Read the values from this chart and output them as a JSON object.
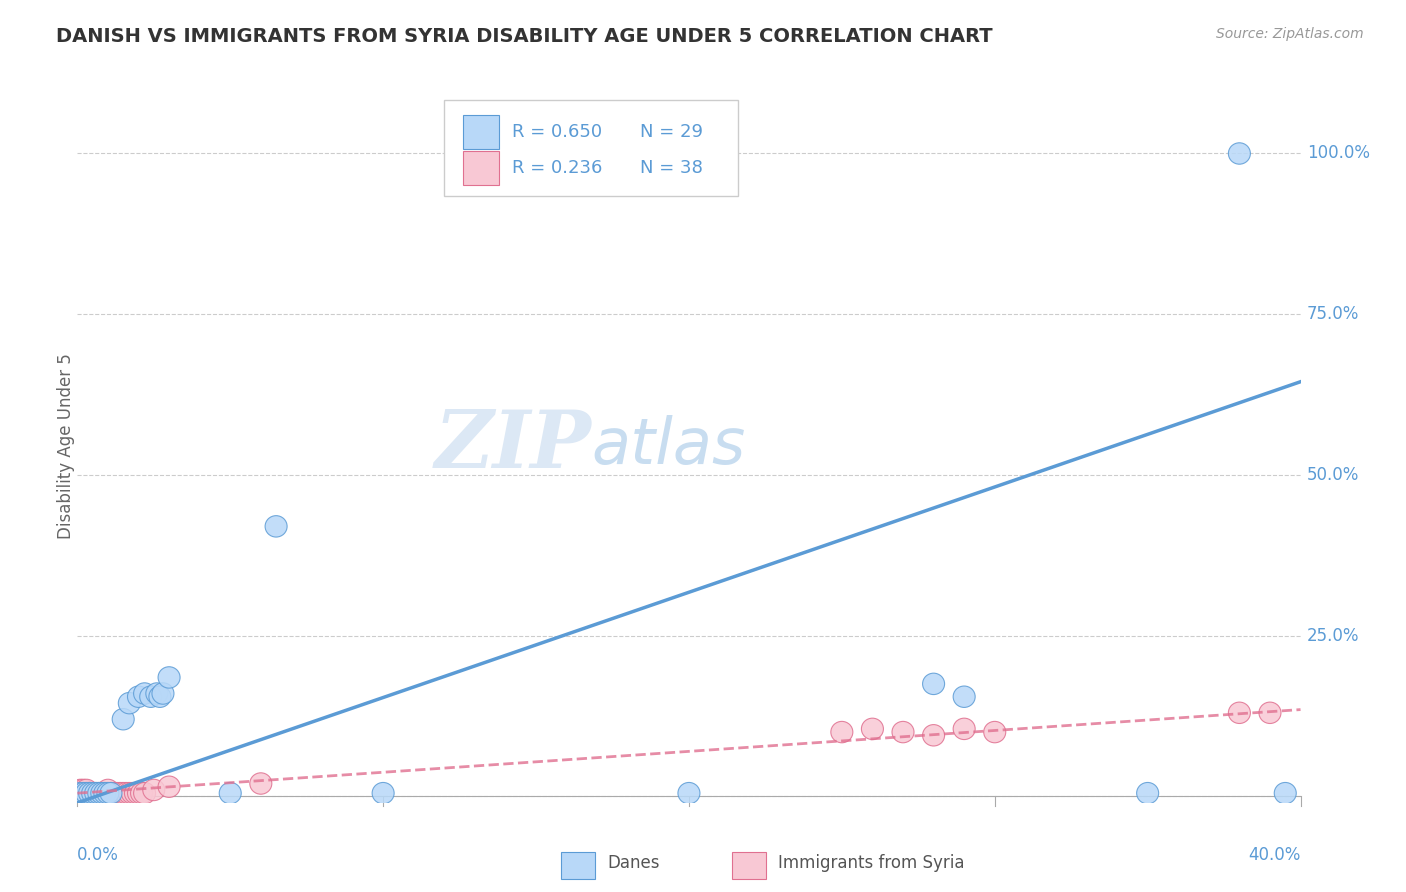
{
  "title": "DANISH VS IMMIGRANTS FROM SYRIA DISABILITY AGE UNDER 5 CORRELATION CHART",
  "source": "Source: ZipAtlas.com",
  "ylabel": "Disability Age Under 5",
  "background_color": "#ffffff",
  "watermark_zip": "ZIP",
  "watermark_atlas": "atlas",
  "danes_color": "#b8d8f8",
  "danes_line_color": "#5b9bd5",
  "syria_color": "#f8c8d4",
  "syria_line_color": "#e07090",
  "danes_R": 0.65,
  "danes_N": 29,
  "syria_R": 0.236,
  "syria_N": 38,
  "ytick_vals": [
    0.0,
    0.25,
    0.5,
    0.75,
    1.0
  ],
  "ytick_labels": [
    "",
    "25.0%",
    "50.0%",
    "75.0%",
    "100.0%"
  ],
  "xmin": 0.0,
  "xmax": 0.4,
  "ymin": -0.01,
  "ymax": 1.1,
  "danes_line_x0": 0.0,
  "danes_line_y0": -0.01,
  "danes_line_x1": 0.4,
  "danes_line_y1": 0.645,
  "syria_line_x0": 0.0,
  "syria_line_y0": 0.005,
  "syria_line_x1": 0.4,
  "syria_line_y1": 0.135,
  "danes_points": [
    [
      0.001,
      0.005
    ],
    [
      0.002,
      0.005
    ],
    [
      0.003,
      0.005
    ],
    [
      0.004,
      0.005
    ],
    [
      0.005,
      0.005
    ],
    [
      0.006,
      0.005
    ],
    [
      0.007,
      0.005
    ],
    [
      0.008,
      0.005
    ],
    [
      0.009,
      0.005
    ],
    [
      0.01,
      0.005
    ],
    [
      0.011,
      0.005
    ],
    [
      0.015,
      0.12
    ],
    [
      0.017,
      0.145
    ],
    [
      0.02,
      0.155
    ],
    [
      0.022,
      0.16
    ],
    [
      0.024,
      0.155
    ],
    [
      0.026,
      0.16
    ],
    [
      0.027,
      0.155
    ],
    [
      0.028,
      0.16
    ],
    [
      0.03,
      0.185
    ],
    [
      0.05,
      0.005
    ],
    [
      0.065,
      0.42
    ],
    [
      0.1,
      0.005
    ],
    [
      0.2,
      0.005
    ],
    [
      0.28,
      0.175
    ],
    [
      0.29,
      0.155
    ],
    [
      0.35,
      0.005
    ],
    [
      0.38,
      1.0
    ],
    [
      0.395,
      0.005
    ]
  ],
  "syria_points": [
    [
      0.0,
      0.005
    ],
    [
      0.001,
      0.005
    ],
    [
      0.001,
      0.01
    ],
    [
      0.002,
      0.005
    ],
    [
      0.002,
      0.01
    ],
    [
      0.003,
      0.005
    ],
    [
      0.003,
      0.01
    ],
    [
      0.004,
      0.005
    ],
    [
      0.005,
      0.005
    ],
    [
      0.006,
      0.005
    ],
    [
      0.007,
      0.005
    ],
    [
      0.008,
      0.005
    ],
    [
      0.009,
      0.005
    ],
    [
      0.01,
      0.005
    ],
    [
      0.01,
      0.01
    ],
    [
      0.011,
      0.005
    ],
    [
      0.012,
      0.005
    ],
    [
      0.013,
      0.005
    ],
    [
      0.014,
      0.005
    ],
    [
      0.015,
      0.005
    ],
    [
      0.016,
      0.005
    ],
    [
      0.017,
      0.005
    ],
    [
      0.018,
      0.005
    ],
    [
      0.019,
      0.005
    ],
    [
      0.02,
      0.005
    ],
    [
      0.021,
      0.005
    ],
    [
      0.022,
      0.005
    ],
    [
      0.025,
      0.01
    ],
    [
      0.03,
      0.015
    ],
    [
      0.06,
      0.02
    ],
    [
      0.25,
      0.1
    ],
    [
      0.26,
      0.105
    ],
    [
      0.27,
      0.1
    ],
    [
      0.28,
      0.095
    ],
    [
      0.29,
      0.105
    ],
    [
      0.3,
      0.1
    ],
    [
      0.38,
      0.13
    ],
    [
      0.39,
      0.13
    ]
  ]
}
